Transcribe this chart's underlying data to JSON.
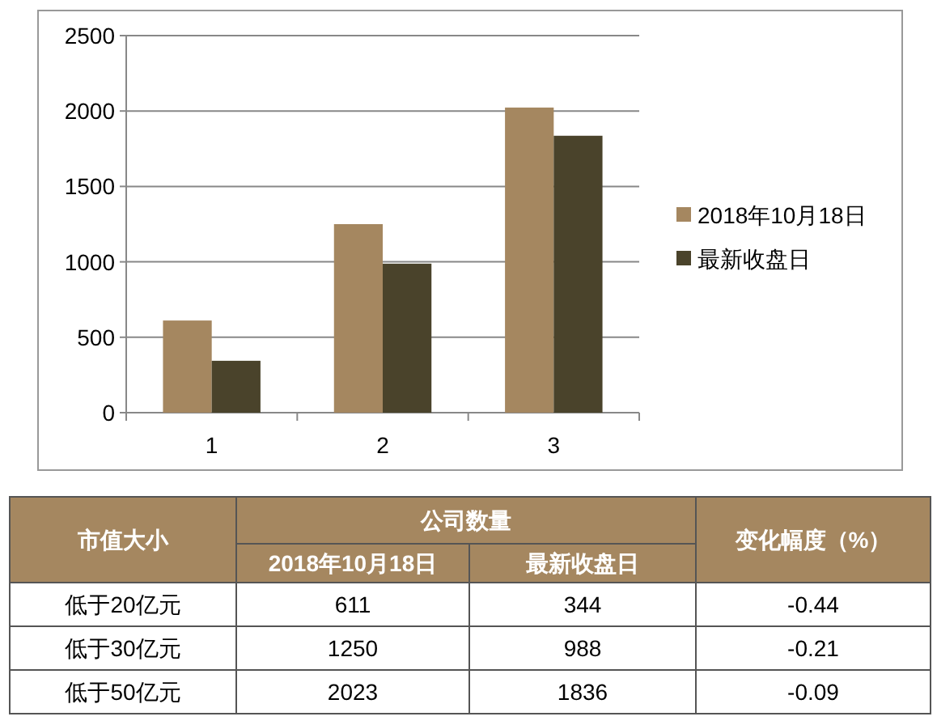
{
  "chart_data": [
    {
      "type": "bar",
      "categories": [
        "1",
        "2",
        "3"
      ],
      "series": [
        {
          "name": "2018年10月18日",
          "color": "#a58760",
          "values": [
            611,
            1250,
            2023
          ]
        },
        {
          "name": "最新收盘日",
          "color": "#4a432b",
          "values": [
            344,
            988,
            1836
          ]
        }
      ],
      "ylim": [
        0,
        2500
      ],
      "yticks": [
        0,
        500,
        1000,
        1500,
        2000,
        2500
      ],
      "grid": "y",
      "legend": "right"
    },
    {
      "type": "other",
      "ylabel": "市值大小",
      "xlabel": "公司数量",
      "categories": [
        "2018年10月18日",
        "最新收盘日",
        "变化幅度（%）"
      ],
      "y_categories": [
        "低于20亿元",
        "低于30亿元",
        "低于50亿元"
      ],
      "cells": [
        [
          "611",
          "344",
          "-0.44"
        ],
        [
          "1250",
          "988",
          "-0.21"
        ],
        [
          "2023",
          "1836",
          "-0.09"
        ]
      ]
    }
  ]
}
